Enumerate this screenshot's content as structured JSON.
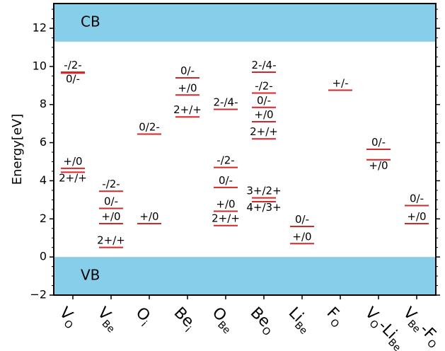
{
  "chart_data": {
    "type": "defect-levels",
    "ylabel": "Energy[eV]",
    "ylim": [
      -2,
      13.3
    ],
    "yticks": [
      -2,
      0,
      2,
      4,
      6,
      8,
      10,
      12
    ],
    "grid": false,
    "bands": [
      {
        "name": "CB",
        "from": 11.3,
        "to": 13.3,
        "color": "#87ceeb"
      },
      {
        "name": "VB",
        "from": -2,
        "to": 0,
        "color": "#87ceeb"
      }
    ],
    "level_color": "#d62728",
    "categories": [
      {
        "main": "V",
        "sub": "O"
      },
      {
        "main": "V",
        "sub": "Be"
      },
      {
        "main": "O",
        "sub": "i"
      },
      {
        "main": "Be",
        "sub": "i"
      },
      {
        "main": "O",
        "sub": "Be"
      },
      {
        "main": "Be",
        "sub": "O"
      },
      {
        "main": "Li",
        "sub": "Be"
      },
      {
        "main": "F",
        "sub": "O"
      },
      {
        "main": "V",
        "sub": "O",
        "suffix_main": "-Li",
        "suffix_sub": "Be"
      },
      {
        "main": "V",
        "sub": "Be",
        "suffix_main": "-F",
        "suffix_sub": "O"
      }
    ],
    "levels": [
      {
        "category": 0,
        "energy": 9.7,
        "label": "-/2-",
        "label_pos": "above"
      },
      {
        "category": 0,
        "energy": 9.65,
        "label": "0/-",
        "label_pos": "below"
      },
      {
        "category": 0,
        "energy": 4.65,
        "label": "+/0",
        "label_pos": "above"
      },
      {
        "category": 0,
        "energy": 4.45,
        "label": "2+/+",
        "label_pos": "below"
      },
      {
        "category": 1,
        "energy": 3.45,
        "label": "-/2-",
        "label_pos": "above"
      },
      {
        "category": 1,
        "energy": 2.55,
        "label": "0/-",
        "label_pos": "above"
      },
      {
        "category": 1,
        "energy": 1.75,
        "label": "+/0",
        "label_pos": "above"
      },
      {
        "category": 1,
        "energy": 0.5,
        "label": "2+/+",
        "label_pos": "above"
      },
      {
        "category": 2,
        "energy": 6.45,
        "label": "0/2-",
        "label_pos": "above"
      },
      {
        "category": 2,
        "energy": 1.75,
        "label": "+/0",
        "label_pos": "above"
      },
      {
        "category": 3,
        "energy": 9.4,
        "label": "0/-",
        "label_pos": "above"
      },
      {
        "category": 3,
        "energy": 8.5,
        "label": "+/0",
        "label_pos": "above"
      },
      {
        "category": 3,
        "energy": 7.35,
        "label": "2+/+",
        "label_pos": "above"
      },
      {
        "category": 4,
        "energy": 7.75,
        "label": "2-/4-",
        "label_pos": "above"
      },
      {
        "category": 4,
        "energy": 4.7,
        "label": "-/2-",
        "label_pos": "above"
      },
      {
        "category": 4,
        "energy": 3.65,
        "label": "0/-",
        "label_pos": "above"
      },
      {
        "category": 4,
        "energy": 2.4,
        "label": "+/0",
        "label_pos": "above"
      },
      {
        "category": 4,
        "energy": 1.65,
        "label": "2+/+",
        "label_pos": "above"
      },
      {
        "category": 5,
        "energy": 9.7,
        "label": "2-/4-",
        "label_pos": "above"
      },
      {
        "category": 5,
        "energy": 8.6,
        "label": "-/2-",
        "label_pos": "above"
      },
      {
        "category": 5,
        "energy": 7.85,
        "label": "0/-",
        "label_pos": "above"
      },
      {
        "category": 5,
        "energy": 7.1,
        "label": "+/0",
        "label_pos": "above"
      },
      {
        "category": 5,
        "energy": 6.2,
        "label": "2+/+",
        "label_pos": "above"
      },
      {
        "category": 5,
        "energy": 3.1,
        "label": "3+/2+",
        "label_pos": "above"
      },
      {
        "category": 5,
        "energy": 2.9,
        "label": "4+/3+",
        "label_pos": "below"
      },
      {
        "category": 6,
        "energy": 1.6,
        "label": "0/-",
        "label_pos": "above"
      },
      {
        "category": 6,
        "energy": 0.7,
        "label": "+/0",
        "label_pos": "above"
      },
      {
        "category": 7,
        "energy": 8.75,
        "label": "+/-",
        "label_pos": "above"
      },
      {
        "category": 8,
        "energy": 5.65,
        "label": "0/-",
        "label_pos": "above"
      },
      {
        "category": 8,
        "energy": 5.1,
        "label": "+/0",
        "label_pos": "below"
      },
      {
        "category": 9,
        "energy": 2.7,
        "label": "0/-",
        "label_pos": "above"
      },
      {
        "category": 9,
        "energy": 1.75,
        "label": "+/0",
        "label_pos": "above"
      }
    ]
  }
}
